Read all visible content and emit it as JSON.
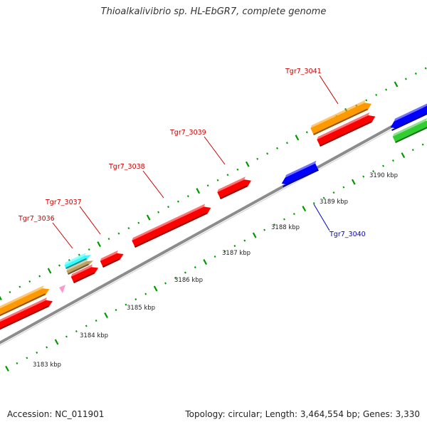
{
  "title": "Thioalkalivibrio sp. HL-EbGR7, complete genome",
  "footer": {
    "accession": "Accession: NC_011901",
    "topology": "Topology: circular; Length: 3,464,554 bp; Genes: 3,330"
  },
  "colors": {
    "backbone": "#8c8c8c",
    "forward_gene": "#ff0000",
    "reverse_gene": "#0000ff",
    "orange_feature": "#ff9900",
    "green_feature": "#33cc33",
    "cyan_feature": "#33ffff",
    "tan_feature": "#bba060",
    "pink_feature": "#ff99cc",
    "tick": "#009900",
    "forward_label": "#cc0000",
    "reverse_label": "#0000cc"
  },
  "scale": {
    "ticks_kbp": [
      3183,
      3184,
      3185,
      3186,
      3187,
      3188,
      3189,
      3190
    ],
    "tick_labels": [
      "3183 kbp",
      "3184 kbp",
      "3185 kbp",
      "3186 kbp",
      "3187 kbp",
      "3188 kbp",
      "3189 kbp",
      "3190 kbp"
    ]
  },
  "gene_labels": [
    {
      "name": "Tgr7_3036",
      "strand": "forward"
    },
    {
      "name": "Tgr7_3037",
      "strand": "forward"
    },
    {
      "name": "Tgr7_3038",
      "strand": "forward"
    },
    {
      "name": "Tgr7_3039",
      "strand": "forward"
    },
    {
      "name": "Tgr7_3040",
      "strand": "reverse"
    },
    {
      "name": "Tgr7_3041",
      "strand": "forward"
    }
  ]
}
